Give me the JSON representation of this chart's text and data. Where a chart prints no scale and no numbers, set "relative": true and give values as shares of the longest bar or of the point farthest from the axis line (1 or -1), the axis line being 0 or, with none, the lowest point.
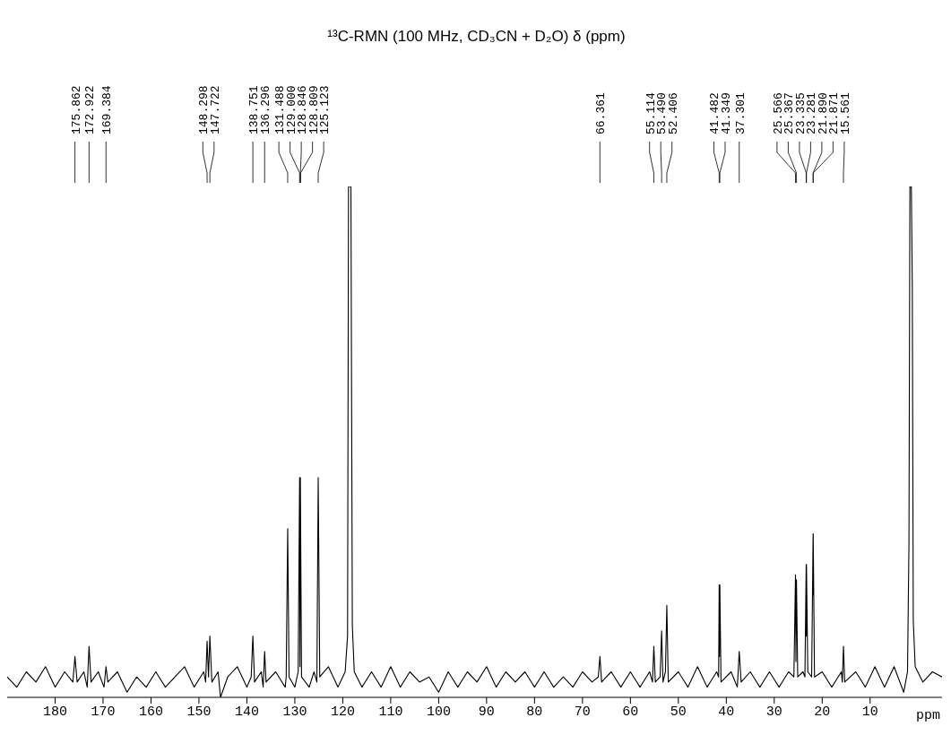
{
  "chart_data": {
    "type": "line",
    "title": "¹³C-RMN (100 MHz, CD₃CN + D₂O) δ (ppm)",
    "xlabel": "ppm",
    "relative": true,
    "xlim": [
      190,
      -5
    ],
    "xticks": [
      180,
      170,
      160,
      150,
      140,
      130,
      120,
      110,
      100,
      90,
      80,
      70,
      60,
      50,
      40,
      30,
      20,
      10
    ],
    "grid": false,
    "legend": false,
    "marker": "none",
    "line_style": "solid",
    "series": [
      {
        "color": "#000000",
        "x": [
          190,
          188,
          186,
          184,
          182,
          180,
          178,
          176.3,
          175.862,
          175.4,
          174,
          173.3,
          172.922,
          172.5,
          171,
          169.8,
          169.384,
          169,
          167,
          165,
          163,
          161,
          159,
          157,
          155,
          153,
          151,
          149,
          148.6,
          148.298,
          148,
          147.722,
          147.3,
          146,
          145.5,
          144,
          142,
          140,
          139.1,
          138.751,
          138.4,
          137,
          136.6,
          136.296,
          136,
          134,
          132,
          131.8,
          131.488,
          131.2,
          130,
          129.3,
          129.0,
          128.92,
          128.846,
          128.6,
          127,
          126,
          125.4,
          125.123,
          124.8,
          123,
          121,
          119.5,
          119,
          118.8,
          118.3,
          118,
          117.6,
          116,
          114,
          112,
          110,
          108,
          106,
          104,
          102,
          100,
          98,
          96,
          94,
          92,
          90,
          88,
          86,
          84,
          82,
          80,
          78,
          76,
          74,
          72,
          70,
          68,
          66.7,
          66.361,
          66,
          64,
          62,
          60,
          58,
          56,
          55.4,
          55.114,
          54.8,
          53.8,
          53.49,
          53.2,
          52.7,
          52.406,
          52.1,
          50,
          48,
          46,
          44,
          42,
          41.6,
          41.482,
          41.42,
          41.349,
          41.1,
          39,
          37.7,
          37.301,
          36.9,
          35,
          33,
          31,
          29,
          27,
          25.9,
          25.566,
          25.47,
          25.367,
          25.1,
          24,
          23.6,
          23.335,
          23.31,
          23.281,
          23,
          22.2,
          21.89,
          21.88,
          21.871,
          21.6,
          20,
          18,
          16,
          15.8,
          15.561,
          15.3,
          13,
          11,
          9,
          7,
          5,
          3,
          2.2,
          1.9,
          1.7,
          1.4,
          1.2,
          1.0,
          0.6,
          -1,
          -3,
          -5
        ],
        "values": [
          0.04,
          0.02,
          0.05,
          0.03,
          0.06,
          0.02,
          0.05,
          0.03,
          0.08,
          0.03,
          0.05,
          0.02,
          0.1,
          0.03,
          0.05,
          0.02,
          0.06,
          0.03,
          0.05,
          0.01,
          0.04,
          0.02,
          0.05,
          0.02,
          0.04,
          0.06,
          0.02,
          0.05,
          0.03,
          0.11,
          0.04,
          0.12,
          0.03,
          0.05,
          0,
          0.04,
          0.06,
          0.02,
          0.04,
          0.12,
          0.03,
          0.05,
          0.02,
          0.09,
          0.03,
          0.05,
          0.02,
          0.04,
          0.33,
          0.04,
          0.02,
          0.05,
          0.43,
          0.06,
          0.43,
          0.04,
          0.02,
          0.05,
          0.03,
          0.43,
          0.04,
          0.06,
          0.02,
          0.05,
          0.12,
          1,
          1,
          0.14,
          0.05,
          0.02,
          0.05,
          0.02,
          0.06,
          0.02,
          0.05,
          0.03,
          0.04,
          0.01,
          0.05,
          0.02,
          0.05,
          0.03,
          0.06,
          0.02,
          0.05,
          0.03,
          0.05,
          0.02,
          0.05,
          0.02,
          0.04,
          0.02,
          0.05,
          0.03,
          0.04,
          0.08,
          0.03,
          0.05,
          0.02,
          0.05,
          0.02,
          0.05,
          0.03,
          0.1,
          0.03,
          0.04,
          0.13,
          0.03,
          0.05,
          0.18,
          0.03,
          0.05,
          0.02,
          0.06,
          0.02,
          0.05,
          0.04,
          0.22,
          0.08,
          0.22,
          0.03,
          0.05,
          0.02,
          0.09,
          0.03,
          0.05,
          0.02,
          0.05,
          0.02,
          0.05,
          0.04,
          0.24,
          0.07,
          0.23,
          0.04,
          0.05,
          0.04,
          0.26,
          0.12,
          0.26,
          0.05,
          0.04,
          0.32,
          0.2,
          0.32,
          0.04,
          0.05,
          0.02,
          0.05,
          0.03,
          0.1,
          0.03,
          0.05,
          0.02,
          0.06,
          0.02,
          0.06,
          0.01,
          0.05,
          0.3,
          1,
          1,
          0.8,
          0.15,
          0.06,
          0.03,
          0.05,
          0.04
        ]
      }
    ],
    "annotations": [
      {
        "text": "175.862",
        "x": 175.862
      },
      {
        "text": "172.922",
        "x": 172.922
      },
      {
        "text": "169.384",
        "x": 169.384
      },
      {
        "text": "148.298",
        "x": 148.298
      },
      {
        "text": "147.722",
        "x": 147.722
      },
      {
        "text": "138.751",
        "x": 138.751
      },
      {
        "text": "136.296",
        "x": 136.296
      },
      {
        "text": "131.488",
        "x": 131.488
      },
      {
        "text": "129.000",
        "x": 129.0
      },
      {
        "text": "128.846",
        "x": 128.846
      },
      {
        "text": "128.809",
        "x": 128.809
      },
      {
        "text": "125.123",
        "x": 125.123
      },
      {
        "text": "66.361",
        "x": 66.361
      },
      {
        "text": "55.114",
        "x": 55.114
      },
      {
        "text": "53.490",
        "x": 53.49
      },
      {
        "text": "52.406",
        "x": 52.406
      },
      {
        "text": "41.482",
        "x": 41.482
      },
      {
        "text": "41.349",
        "x": 41.349
      },
      {
        "text": "37.301",
        "x": 37.301
      },
      {
        "text": "25.566",
        "x": 25.566
      },
      {
        "text": "25.367",
        "x": 25.367
      },
      {
        "text": "23.335",
        "x": 23.335
      },
      {
        "text": "23.281",
        "x": 23.281
      },
      {
        "text": "21.890",
        "x": 21.89
      },
      {
        "text": "21.871",
        "x": 21.871
      },
      {
        "text": "15.561",
        "x": 15.561
      }
    ]
  }
}
